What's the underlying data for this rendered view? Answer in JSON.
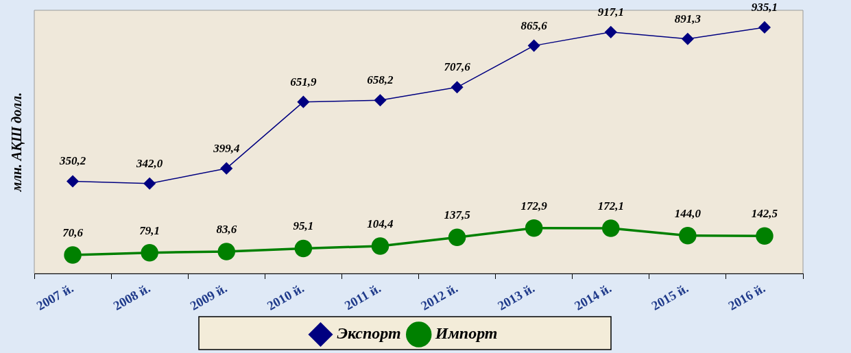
{
  "chart_data": {
    "type": "line",
    "ylabel": "млн. АҚШ долл.",
    "categories": [
      "2007 й.",
      "2008 й.",
      "2009 й.",
      "2010 й.",
      "2011 й.",
      "2012 й.",
      "2013 й.",
      "2014 й.",
      "2015 й.",
      "2016 й."
    ],
    "series": [
      {
        "name": "Экспорт",
        "color": "#000080",
        "marker": "diamond",
        "values": [
          350.2,
          342.0,
          399.4,
          651.9,
          658.2,
          707.6,
          865.6,
          917.1,
          891.3,
          935.1
        ],
        "value_labels": [
          "350,2",
          "342,0",
          "399,4",
          "651,9",
          "658,2",
          "707,6",
          "865,6",
          "917,1",
          "891,3",
          "935,1"
        ]
      },
      {
        "name": "Импорт",
        "color": "#008000",
        "marker": "circle",
        "values": [
          70.6,
          79.1,
          83.6,
          95.1,
          104.4,
          137.5,
          172.9,
          172.1,
          144.0,
          142.5
        ],
        "value_labels": [
          "70,6",
          "79,1",
          "83,6",
          "95,1",
          "104,4",
          "137,5",
          "172,9",
          "172,1",
          "144,0",
          "142,5"
        ]
      }
    ],
    "legend": "bottom",
    "line_style": "solid"
  }
}
